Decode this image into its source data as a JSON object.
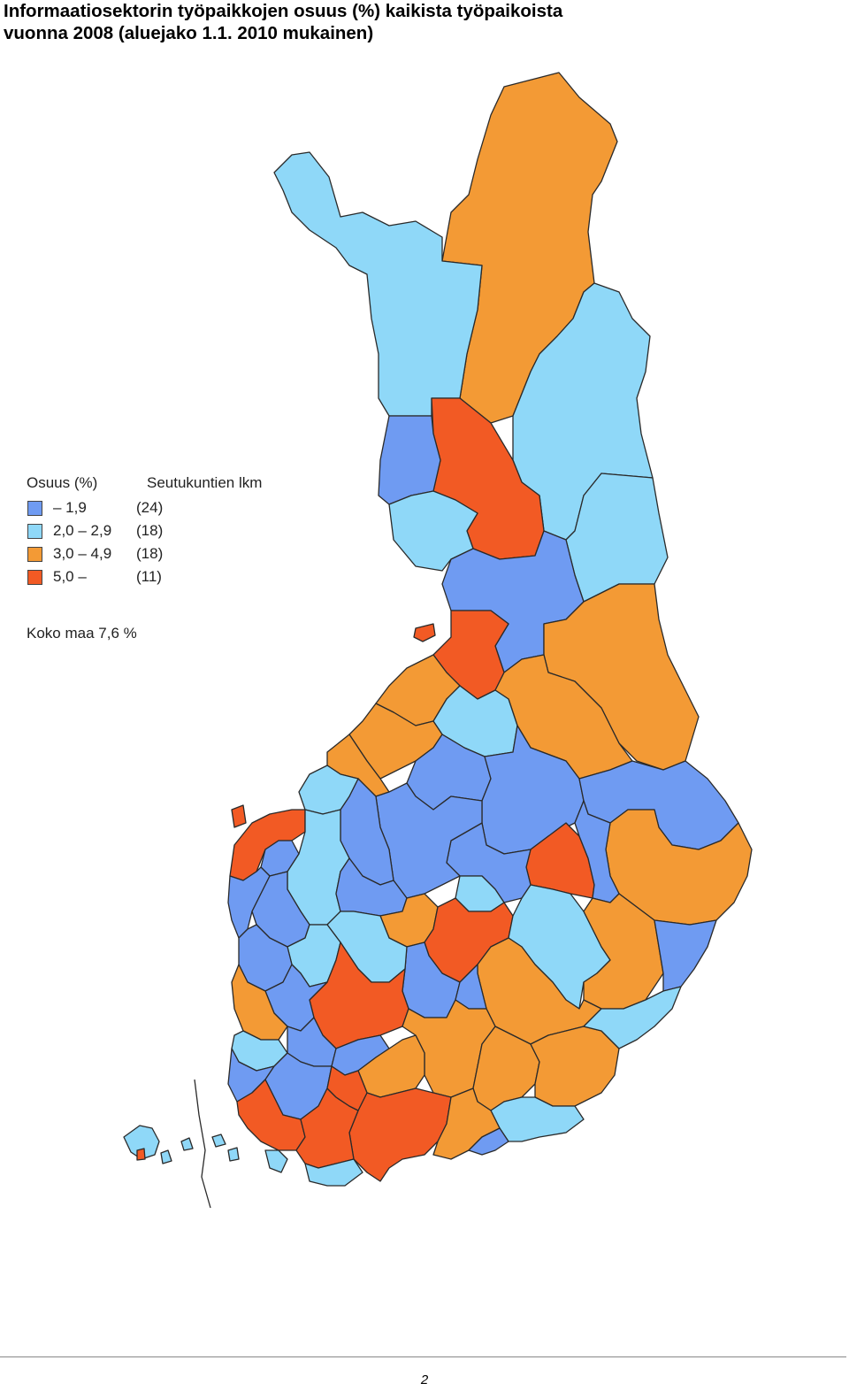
{
  "title": {
    "line1": "Informaatiosektorin työpaikkojen osuus (%) kaikista työpaikoista",
    "line2": "vuonna 2008 (aluejako 1.1. 2010 mukainen)"
  },
  "legend": {
    "header_share": "Osuus (%)",
    "header_count": "Seutukuntien lkm",
    "classes": [
      {
        "range": "– 1,9",
        "count": "(24)",
        "color": "#6f9bf2"
      },
      {
        "range": "2,0 – 2,9",
        "count": "(18)",
        "color": "#8fd8f8"
      },
      {
        "range": "3,0 – 4,9",
        "count": "(18)",
        "color": "#f39a35"
      },
      {
        "range": "5,0 –",
        "count": "(11)",
        "color": "#f25a24"
      }
    ],
    "total": "Koko maa 7,6 %"
  },
  "map": {
    "colors": {
      "low": "#6f9bf2",
      "mid": "#8fd8f8",
      "high": "#f39a35",
      "top": "#f25a24"
    }
  },
  "page_number": "2"
}
